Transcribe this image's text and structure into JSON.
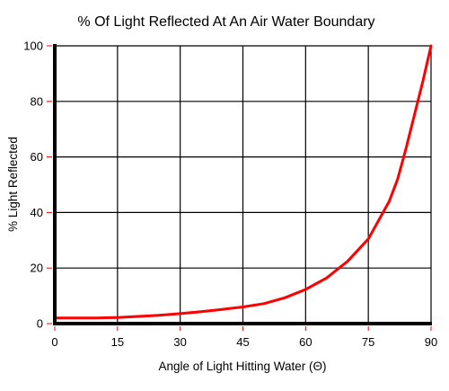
{
  "chart_data": {
    "type": "line",
    "title": "% Of Light Reflected At An Air Water Boundary",
    "xlabel": "Angle of Light Hitting Water (Θ)",
    "ylabel": "% Light Reflected",
    "xlim": [
      0,
      90
    ],
    "ylim": [
      0,
      100
    ],
    "x_ticks": [
      0,
      15,
      30,
      45,
      60,
      75,
      90
    ],
    "y_ticks": [
      0,
      20,
      40,
      60,
      80,
      100
    ],
    "grid": true,
    "series": [
      {
        "color": "#ff0000",
        "x": [
          0,
          5,
          10,
          15,
          20,
          25,
          30,
          35,
          40,
          45,
          50,
          55,
          60,
          65,
          70,
          75,
          80,
          82,
          84,
          86,
          88,
          90
        ],
        "y": [
          2,
          2,
          2,
          2.2,
          2.6,
          3,
          3.6,
          4.3,
          5.1,
          6,
          7.2,
          9.3,
          12.3,
          16.4,
          22.4,
          30.5,
          44,
          52,
          63,
          75,
          87,
          100
        ]
      }
    ]
  }
}
